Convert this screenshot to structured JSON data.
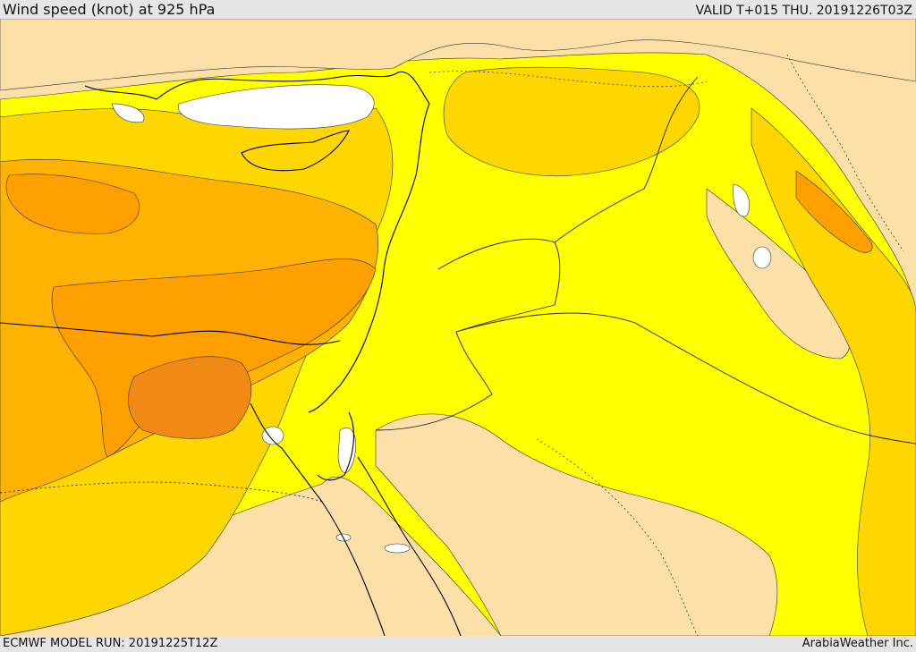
{
  "header": {
    "title": "Wind speed (knot) at 925 hPa",
    "valid": "VALID T+015 THU. 20191226T03Z"
  },
  "footer": {
    "model_run": "ECMWF MODEL RUN: 20191225T12Z",
    "credit": "ArabiaWeather Inc."
  },
  "map": {
    "field": "Wind speed at 925 hPa",
    "legend_visible": false,
    "colors": {
      "white": "#ffffff",
      "light_tan": "#fde0a8",
      "yellow": "#ffff00",
      "gold": "#ffd700",
      "orange_light": "#ffb300",
      "orange": "#ff9f00",
      "dark_orange": "#f08a14",
      "coastline": "#000000",
      "border": "#222222"
    }
  }
}
